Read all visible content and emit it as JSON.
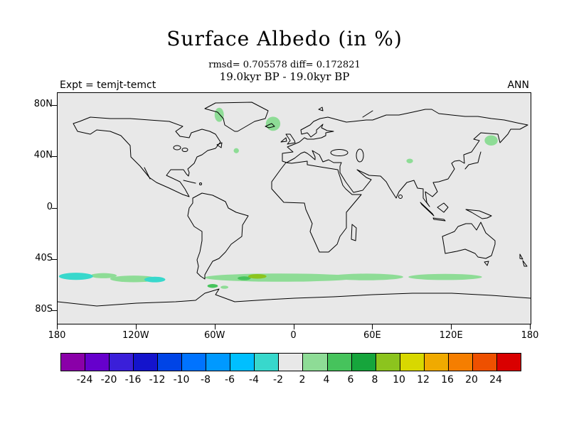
{
  "header": {
    "title": "Surface Albedo (in %)",
    "stats_line": "rmsd= 0.705578 diff= 0.172821",
    "period_line": "19.0kyr BP - 19.0kyr BP",
    "experiment_label": "Expt = temjt-temct",
    "season_label": "ANN"
  },
  "chart_data": {
    "type": "heatmap",
    "title": "Surface Albedo (in %)",
    "subtitle": "19.0kyr BP - 19.0kyr BP",
    "stats": {
      "rmsd": 0.705578,
      "diff": 0.172821
    },
    "experiment": "temjt-temct",
    "season": "ANN",
    "units": "%",
    "projection": "equirectangular",
    "lon_range": [
      -180,
      180
    ],
    "lat_range": [
      -90,
      90
    ],
    "grid": false,
    "legend_position": "bottom",
    "background_value_color": "#e8e8e8",
    "lat_ticks": [
      {
        "label": "80N",
        "lat": 80
      },
      {
        "label": "40N",
        "lat": 40
      },
      {
        "label": "0",
        "lat": 0
      },
      {
        "label": "40S",
        "lat": -40
      },
      {
        "label": "80S",
        "lat": -80
      }
    ],
    "lon_ticks": [
      {
        "label": "180",
        "lon": -180
      },
      {
        "label": "120W",
        "lon": -120
      },
      {
        "label": "60W",
        "lon": -60
      },
      {
        "label": "0",
        "lon": 0
      },
      {
        "label": "60E",
        "lon": 60
      },
      {
        "label": "120E",
        "lon": 120
      },
      {
        "label": "180",
        "lon": 180
      }
    ],
    "levels": [
      -24,
      -20,
      -16,
      -12,
      -10,
      -8,
      -6,
      -4,
      -2,
      2,
      4,
      6,
      8,
      10,
      12,
      16,
      20,
      24
    ],
    "palette": [
      "#8a00a8",
      "#6600cc",
      "#3a1fd9",
      "#1414cc",
      "#0044e6",
      "#0073ff",
      "#0099ff",
      "#00bfff",
      "#38d8cc",
      "#e8e8e8",
      "#8edc96",
      "#46c35c",
      "#16a53c",
      "#8cc41e",
      "#d8d800",
      "#f0aa00",
      "#f57e00",
      "#ee5000",
      "#d90000"
    ],
    "anomalies": [
      {
        "lon": -10,
        "lat": -54,
        "lon_radius": 58,
        "lat_radius": 3.2,
        "value_range": [
          2,
          4
        ]
      },
      {
        "lon": 55,
        "lat": -53.5,
        "lon_radius": 28,
        "lat_radius": 2.6,
        "value_range": [
          2,
          4
        ]
      },
      {
        "lon": 115,
        "lat": -53.5,
        "lon_radius": 28,
        "lat_radius": 2.4,
        "value_range": [
          2,
          4
        ]
      },
      {
        "lon": -122,
        "lat": -55,
        "lon_radius": 18,
        "lat_radius": 2.6,
        "value_range": [
          2,
          4
        ]
      },
      {
        "lon": -145,
        "lat": -52.5,
        "lon_radius": 10,
        "lat_radius": 2,
        "value_range": [
          2,
          4
        ]
      },
      {
        "lon": -53,
        "lat": -61.5,
        "lon_radius": 3,
        "lat_radius": 1.2,
        "value_range": [
          2,
          4
        ]
      },
      {
        "lon": -57,
        "lat": 73,
        "lon_radius": 3.5,
        "lat_radius": 5.5,
        "value_range": [
          2,
          4
        ]
      },
      {
        "lon": -16,
        "lat": 66,
        "lon_radius": 5.5,
        "lat_radius": 5.5,
        "value_range": [
          2,
          4
        ]
      },
      {
        "lon": -44,
        "lat": 45,
        "lon_radius": 2,
        "lat_radius": 2,
        "value_range": [
          2,
          4
        ]
      },
      {
        "lon": 150,
        "lat": 53,
        "lon_radius": 5,
        "lat_radius": 4,
        "value_range": [
          2,
          4
        ]
      },
      {
        "lon": 88,
        "lat": 37,
        "lon_radius": 2.5,
        "lat_radius": 1.8,
        "value_range": [
          2,
          4
        ]
      },
      {
        "lon": -38,
        "lat": -54.5,
        "lon_radius": 5,
        "lat_radius": 1.5,
        "value_range": [
          4,
          6
        ]
      },
      {
        "lon": -62,
        "lat": -60.5,
        "lon_radius": 4,
        "lat_radius": 1.5,
        "value_range": [
          4,
          6
        ]
      },
      {
        "lon": -28,
        "lat": -53,
        "lon_radius": 7,
        "lat_radius": 1.8,
        "value_range": [
          8,
          10
        ]
      },
      {
        "lon": -166,
        "lat": -53,
        "lon_radius": 13,
        "lat_radius": 2.8,
        "value_range": [
          -4,
          -2
        ]
      },
      {
        "lon": -106,
        "lat": -55.5,
        "lon_radius": 8,
        "lat_radius": 2.2,
        "value_range": [
          -4,
          -2
        ]
      }
    ]
  }
}
